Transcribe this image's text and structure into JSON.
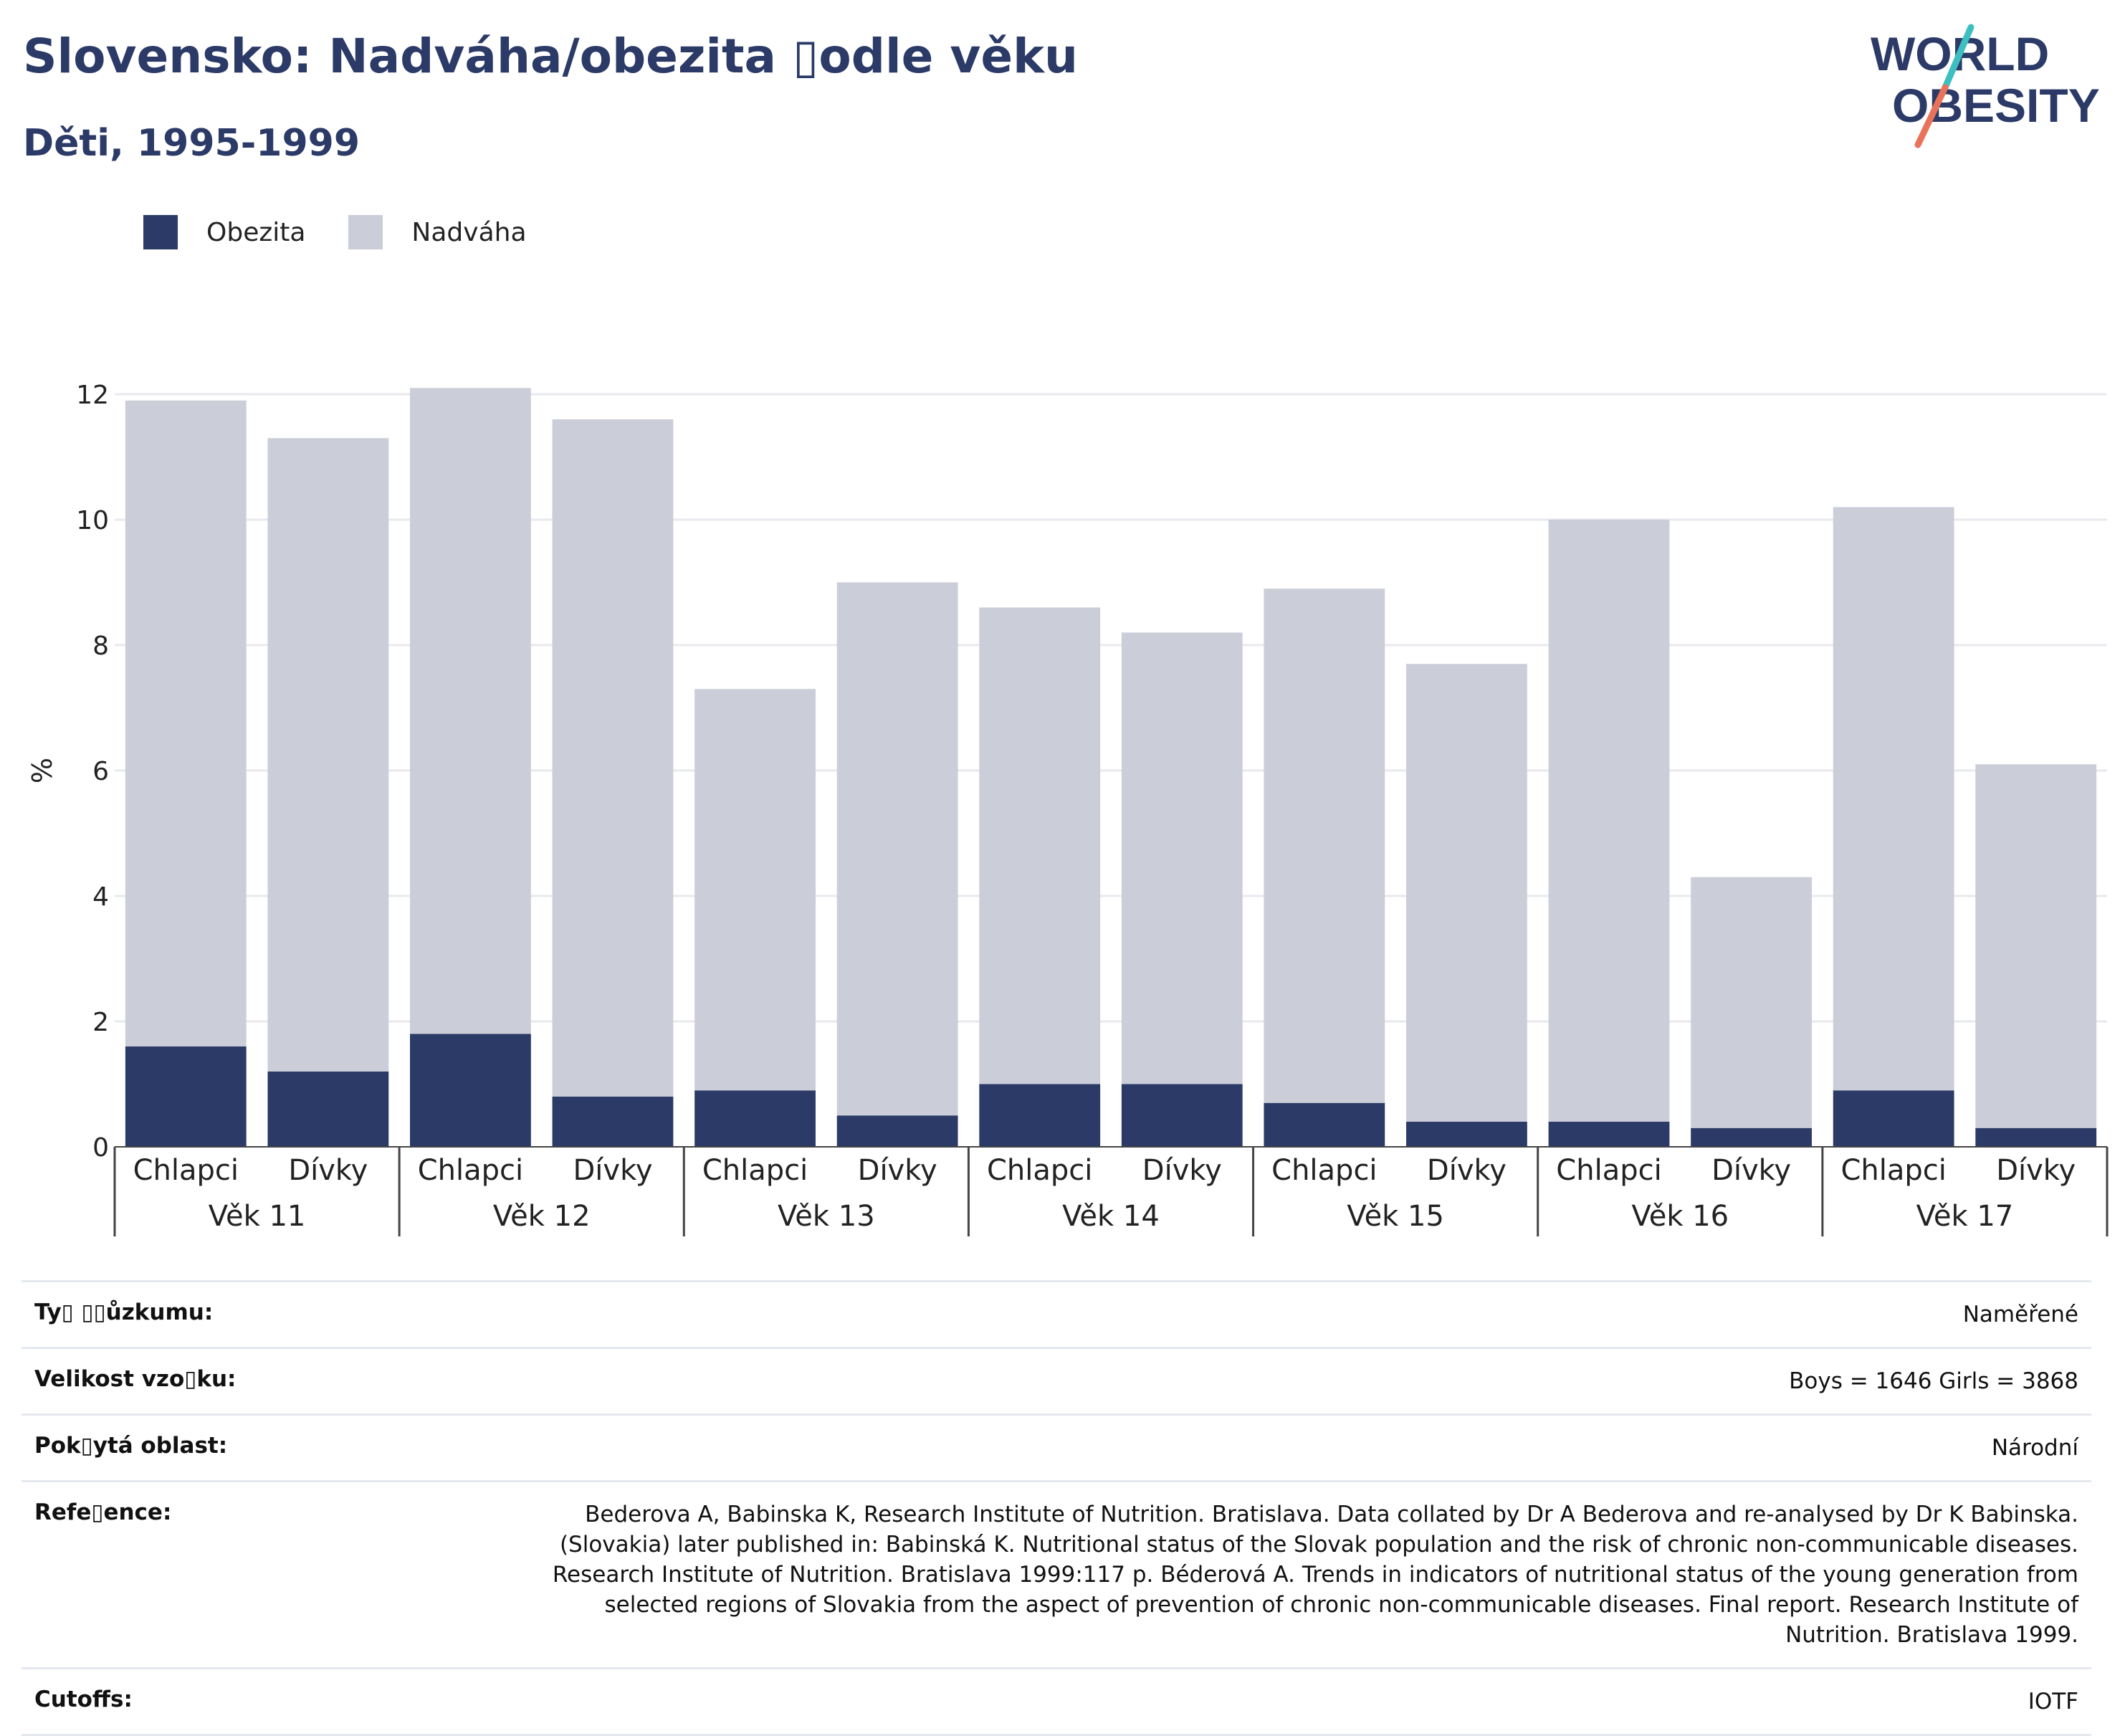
{
  "header": {
    "title": "Slovensko: Nadváha/obezita ▯odle věku",
    "subtitle": "Děti, 1995-1999"
  },
  "logo": {
    "line1": "WORLD",
    "line2": "OBESITY",
    "colors": {
      "text": "#2b3a67",
      "slash_top": "#3bbfc0",
      "slash_bottom": "#e8735a"
    }
  },
  "legend": {
    "items": [
      {
        "label": "Obezita",
        "color": "#2b3a67"
      },
      {
        "label": "Nadváha",
        "color": "#cbcdd8"
      }
    ]
  },
  "chart_data": {
    "type": "bar",
    "stacked": true,
    "ylabel": "%",
    "ylim": [
      0,
      12
    ],
    "yticks": [
      0,
      2,
      4,
      6,
      8,
      10,
      12
    ],
    "grid": true,
    "legend_position": "top-left",
    "groups": [
      "Věk 11",
      "Věk 12",
      "Věk 13",
      "Věk 14",
      "Věk 15",
      "Věk 16",
      "Věk 17"
    ],
    "subcategories": [
      "Chlapci",
      "Dívky"
    ],
    "series": [
      {
        "name": "Obezita",
        "color": "#2b3a67",
        "values": [
          1.6,
          1.2,
          1.8,
          0.8,
          0.9,
          0.5,
          1.0,
          1.0,
          0.7,
          0.4,
          0.4,
          0.3,
          0.9,
          0.3
        ]
      },
      {
        "name": "Nadváha",
        "color": "#cbcdd8",
        "values": [
          10.3,
          10.1,
          10.3,
          10.8,
          6.4,
          8.5,
          7.6,
          7.2,
          8.2,
          7.3,
          9.6,
          4.0,
          9.3,
          5.8
        ]
      }
    ]
  },
  "info": {
    "rows": [
      {
        "label": "Ty▯ ▯▯ůzkumu:",
        "value": "Naměřené"
      },
      {
        "label": "Velikost vzo▯ku:",
        "value": "Boys = 1646 Girls = 3868"
      },
      {
        "label": "Pok▯ytá oblast:",
        "value": "Národní"
      },
      {
        "label": "Refe▯ence:",
        "value": "Bederova A, Babinska K, Research Institute of Nutrition. Bratislava. Data collated by Dr A Bederova and re-analysed by Dr K Babinska. (Slovakia) later published in: Babinská K. Nutritional status of the Slovak population and the risk of chronic non-communicable diseases. Research Institute of Nutrition. Bratislava 1999:117 p. Béderová A. Trends in indicators of nutritional status of the young generation from selected regions of Slovakia from the aspect of prevention of chronic non-communicable diseases. Final report. Research Institute of Nutrition. Bratislava 1999."
      },
      {
        "label": "Cutoffs:",
        "value": "IOTF"
      }
    ]
  }
}
